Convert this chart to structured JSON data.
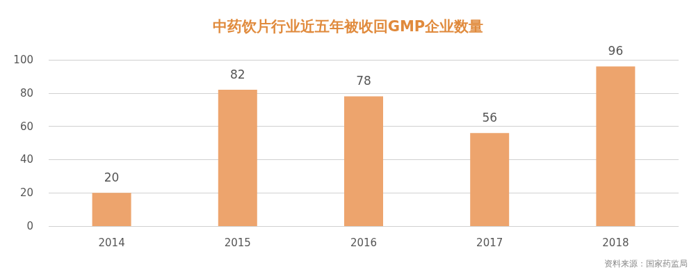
{
  "chart_data": {
    "type": "bar",
    "title": "中药饮片行业近五年被收回GMP企业数量",
    "categories": [
      "2014",
      "2015",
      "2016",
      "2017",
      "2018"
    ],
    "values": [
      20,
      82,
      78,
      56,
      96
    ],
    "color": "#eda46d",
    "ylim": [
      0,
      100
    ],
    "yticks": [
      0,
      20,
      40,
      60,
      80,
      100
    ],
    "grid": "y",
    "data_labels": true,
    "annotations": [
      "资料来源：国家药监局"
    ]
  }
}
